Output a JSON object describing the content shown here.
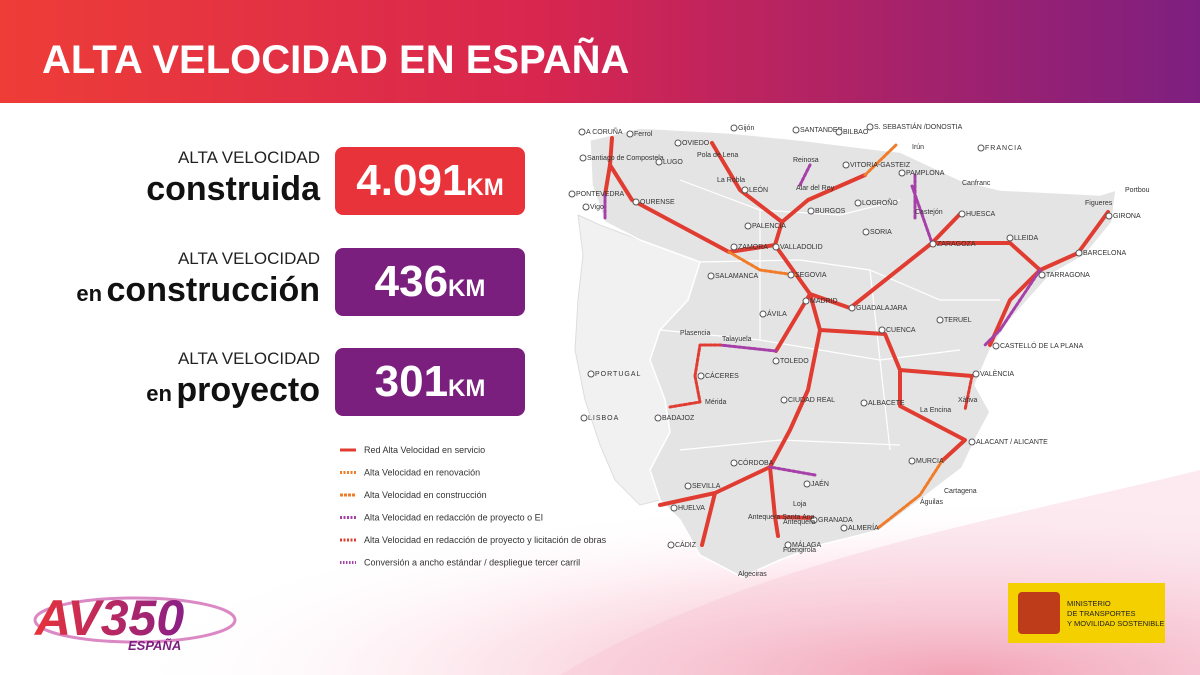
{
  "header": {
    "title": "ALTA VELOCIDAD EN ESPAÑA"
  },
  "stats": [
    {
      "label": "ALTA VELOCIDAD",
      "word": "construida",
      "value": "4.091",
      "unit": "KM"
    },
    {
      "label": "ALTA VELOCIDAD",
      "prefix": "en",
      "word": "construcción",
      "value": "436",
      "unit": "KM"
    },
    {
      "label": "ALTA VELOCIDAD",
      "prefix": "en",
      "word": "proyecto",
      "value": "301",
      "unit": "KM"
    }
  ],
  "legend": [
    "Red Alta Velocidad en servicio",
    "Alta Velocidad en renovación",
    "Alta Velocidad en construcción",
    "Alta Velocidad en redacción de proyecto o EI",
    "Alta Velocidad en redacción de proyecto y licitación de obras",
    "Conversión a ancho estándar / despliegue tercer carril"
  ],
  "map": {
    "labels": [
      "A CORUÑA",
      "Ferrol",
      "Santiago de Compostela",
      "PONTEVEDRA",
      "Vigo",
      "LUGO",
      "OURENSE",
      "OVIEDO",
      "Gijón",
      "Pola de Lena",
      "La Robla",
      "LEÓN",
      "SANTANDER",
      "Reinosa",
      "Alar del Rey",
      "BILBAO",
      "S. SEBASTIÁN /DONOSTIA",
      "Irún",
      "VITORIA-GASTEIZ",
      "BURGOS",
      "LOGROÑO",
      "PAMPLONA",
      "Castejón",
      "Canfranc",
      "FRANCIA",
      "Portbou",
      "Figueres",
      "GIRONA",
      "BARCELONA",
      "HUESCA",
      "LLEIDA",
      "ZARAGOZA",
      "TARRAGONA",
      "SORIA",
      "PALENCIA",
      "VALLADOLID",
      "ZAMORA",
      "SALAMANCA",
      "SEGOVIA",
      "ÁVILA",
      "MADRID",
      "GUADALAJARA",
      "TERUEL",
      "CUENCA",
      "CASTELLÓ DE LA PLANA",
      "VALÈNCIA",
      "Xàtiva",
      "La Encina",
      "ALBACETE",
      "ALACANT / ALICANTE",
      "MURCIA",
      "Cartagena",
      "Águilas",
      "ALMERÍA",
      "GRANADA",
      "Loja",
      "Antequera Santa Ana",
      "Antequera",
      "MÁLAGA",
      "Fuengirola",
      "Algeciras",
      "CÁDIZ",
      "HUELVA",
      "SEVILLA",
      "CÓRDOBA",
      "JAÉN",
      "CIUDAD REAL",
      "TOLEDO",
      "Plasencia",
      "Talayuela",
      "CÁCERES",
      "Mérida",
      "BADAJOZ",
      "PORTUGAL",
      "LISBOA"
    ]
  },
  "logo": {
    "name": "AV350",
    "country": "ESPAÑA"
  },
  "ministry": {
    "lines": [
      "MINISTERIO",
      "DE TRANSPORTES",
      "Y MOVILIDAD SOSTENIBLE"
    ]
  }
}
